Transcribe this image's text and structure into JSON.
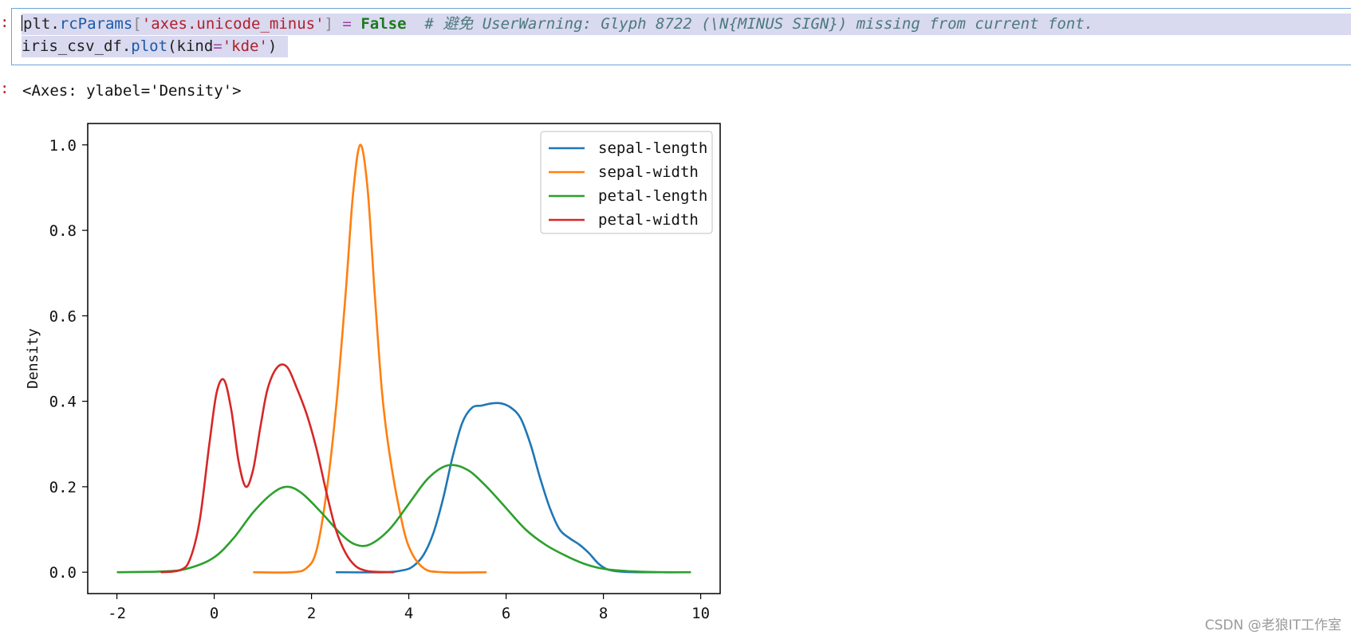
{
  "cell": {
    "input_marker": ":",
    "output_marker": ":",
    "line1": {
      "t1": "plt",
      "t2": ".",
      "t3": "rcParams",
      "t4": "[",
      "t5": "'axes.unicode_minus'",
      "t6": "]",
      "t7": " = ",
      "t8": "False",
      "t9": "  # 避免 UserWarning: Glyph 8722 (\\N{MINUS SIGN}) missing from current font."
    },
    "line2": {
      "t1": "iris_csv_df",
      "t2": ".",
      "t3": "plot",
      "t4": "(kind",
      "t5": "=",
      "t6": "'kde'",
      "t7": ")"
    },
    "output_text": "<Axes: ylabel='Density'>"
  },
  "chart_data": {
    "type": "line",
    "xlabel": "",
    "ylabel": "Density",
    "xlim": [
      -2.6,
      10.4
    ],
    "ylim": [
      -0.05,
      1.05
    ],
    "xticks": [
      -2,
      0,
      2,
      4,
      6,
      8,
      10
    ],
    "xtick_labels": [
      "-2",
      "0",
      "2",
      "4",
      "6",
      "8",
      "10"
    ],
    "yticks": [
      0.0,
      0.2,
      0.4,
      0.6,
      0.8,
      1.0
    ],
    "ytick_labels": [
      "0.0",
      "0.2",
      "0.4",
      "0.6",
      "0.8",
      "1.0"
    ],
    "grid": false,
    "legend_position": "top-right",
    "series": [
      {
        "name": "sepal-length",
        "color": "#1f77b4",
        "x": [
          2.5,
          3.5,
          3.9,
          4.1,
          4.3,
          4.5,
          4.7,
          4.9,
          5.1,
          5.3,
          5.5,
          5.7,
          5.9,
          6.1,
          6.3,
          6.5,
          6.7,
          6.9,
          7.1,
          7.3,
          7.5,
          7.7,
          7.9,
          8.1,
          8.4,
          8.8,
          9.4
        ],
        "y": [
          0.0,
          0.0,
          0.005,
          0.015,
          0.04,
          0.09,
          0.17,
          0.27,
          0.35,
          0.385,
          0.39,
          0.395,
          0.395,
          0.385,
          0.36,
          0.3,
          0.22,
          0.15,
          0.1,
          0.08,
          0.065,
          0.045,
          0.02,
          0.006,
          0.001,
          0.0,
          0.0
        ]
      },
      {
        "name": "sepal-width",
        "color": "#ff7f0e",
        "x": [
          0.8,
          1.6,
          1.9,
          2.1,
          2.3,
          2.5,
          2.7,
          2.85,
          3.0,
          3.15,
          3.3,
          3.45,
          3.6,
          3.8,
          4.0,
          4.3,
          4.7,
          5.6
        ],
        "y": [
          0.0,
          0.0,
          0.01,
          0.05,
          0.18,
          0.38,
          0.65,
          0.88,
          1.0,
          0.9,
          0.65,
          0.42,
          0.28,
          0.15,
          0.06,
          0.01,
          0.0,
          0.0
        ]
      },
      {
        "name": "petal-length",
        "color": "#2ca02c",
        "x": [
          -2.0,
          -1.0,
          -0.5,
          0.0,
          0.4,
          0.8,
          1.2,
          1.5,
          1.8,
          2.2,
          2.6,
          2.9,
          3.2,
          3.6,
          4.0,
          4.4,
          4.8,
          5.2,
          5.6,
          6.0,
          6.4,
          6.8,
          7.2,
          7.6,
          8.0,
          8.6,
          9.2,
          9.8
        ],
        "y": [
          0.0,
          0.002,
          0.01,
          0.035,
          0.08,
          0.14,
          0.185,
          0.2,
          0.185,
          0.14,
          0.09,
          0.065,
          0.065,
          0.1,
          0.16,
          0.22,
          0.25,
          0.24,
          0.2,
          0.15,
          0.1,
          0.065,
          0.04,
          0.02,
          0.008,
          0.002,
          0.0,
          0.0
        ]
      },
      {
        "name": "petal-width",
        "color": "#d62728",
        "x": [
          -1.1,
          -0.7,
          -0.5,
          -0.3,
          -0.1,
          0.05,
          0.2,
          0.35,
          0.5,
          0.65,
          0.8,
          0.95,
          1.1,
          1.3,
          1.5,
          1.7,
          1.9,
          2.1,
          2.3,
          2.5,
          2.7,
          2.9,
          3.1,
          3.3,
          3.7
        ],
        "y": [
          0.0,
          0.005,
          0.03,
          0.12,
          0.3,
          0.42,
          0.45,
          0.38,
          0.26,
          0.2,
          0.24,
          0.34,
          0.43,
          0.48,
          0.48,
          0.43,
          0.37,
          0.29,
          0.19,
          0.1,
          0.045,
          0.015,
          0.004,
          0.001,
          0.0
        ]
      }
    ]
  },
  "watermark": "CSDN @老狼IT工作室"
}
